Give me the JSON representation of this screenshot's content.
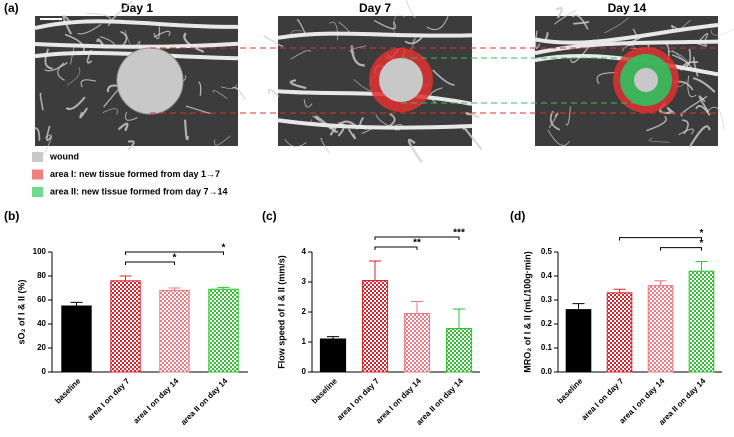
{
  "panel_a": {
    "label": "(a)",
    "days": [
      "Day 1",
      "Day 7",
      "Day 14"
    ],
    "legend": [
      {
        "name": "wound",
        "color": "#c8c8c8"
      },
      {
        "name": "area I: new tissue formed from day 1→7",
        "color": "#f08080"
      },
      {
        "name": "area II: new tissue formed from day 7→14",
        "color": "#70d890"
      }
    ]
  },
  "chart_data": [
    {
      "type": "bar",
      "label": "(b)",
      "ylabel": "sO₂ of I & II (%)",
      "categories": [
        "baseline",
        "area I on day 7",
        "area I on day 14",
        "area II on day 14"
      ],
      "values": [
        55,
        76,
        68,
        69
      ],
      "errors": [
        3,
        4,
        2,
        1.5
      ],
      "colors": [
        "#000000",
        "#e0202a",
        "#f07880",
        "#30c030"
      ],
      "fill_styles": [
        "solid",
        "check",
        "check",
        "check"
      ],
      "ylim": [
        0,
        100
      ],
      "yticks": [
        0,
        20,
        40,
        60,
        80,
        100
      ],
      "brackets": [
        {
          "from": 1,
          "to": 2,
          "label": "*"
        },
        {
          "from": 1,
          "to": 3,
          "label": "*"
        }
      ]
    },
    {
      "type": "bar",
      "label": "(c)",
      "ylabel": "Flow speed of I & II (mm/s)",
      "categories": [
        "baseline",
        "area I on day 7",
        "area I on day 14",
        "area II on day 14"
      ],
      "values": [
        1.1,
        3.05,
        1.95,
        1.45
      ],
      "errors": [
        0.08,
        0.65,
        0.4,
        0.65
      ],
      "colors": [
        "#000000",
        "#e0202a",
        "#f07880",
        "#30c030"
      ],
      "fill_styles": [
        "solid",
        "check",
        "check",
        "check"
      ],
      "ylim": [
        0,
        4
      ],
      "yticks": [
        0,
        1,
        2,
        3,
        4
      ],
      "brackets": [
        {
          "from": 1,
          "to": 2,
          "label": "**"
        },
        {
          "from": 1,
          "to": 3,
          "label": "***"
        }
      ]
    },
    {
      "type": "bar",
      "label": "(d)",
      "ylabel": "MRO₂ of I & II (mL/100g·min)",
      "categories": [
        "baseline",
        "area I on day 7",
        "area I on day 14",
        "area II on day 14"
      ],
      "values": [
        0.26,
        0.33,
        0.36,
        0.42
      ],
      "errors": [
        0.025,
        0.015,
        0.02,
        0.04
      ],
      "colors": [
        "#000000",
        "#e0202a",
        "#f07880",
        "#30c030"
      ],
      "fill_styles": [
        "solid",
        "check",
        "check",
        "check"
      ],
      "ylim": [
        0,
        0.5
      ],
      "yticks": [
        {
          "value": 0,
          "label": "0.0"
        },
        0.1,
        0.2,
        0.3,
        0.4,
        0.5
      ],
      "brackets": [
        {
          "from": 2,
          "to": 3,
          "label": "*"
        },
        {
          "from": 1,
          "to": 3,
          "label": "*"
        }
      ]
    }
  ]
}
